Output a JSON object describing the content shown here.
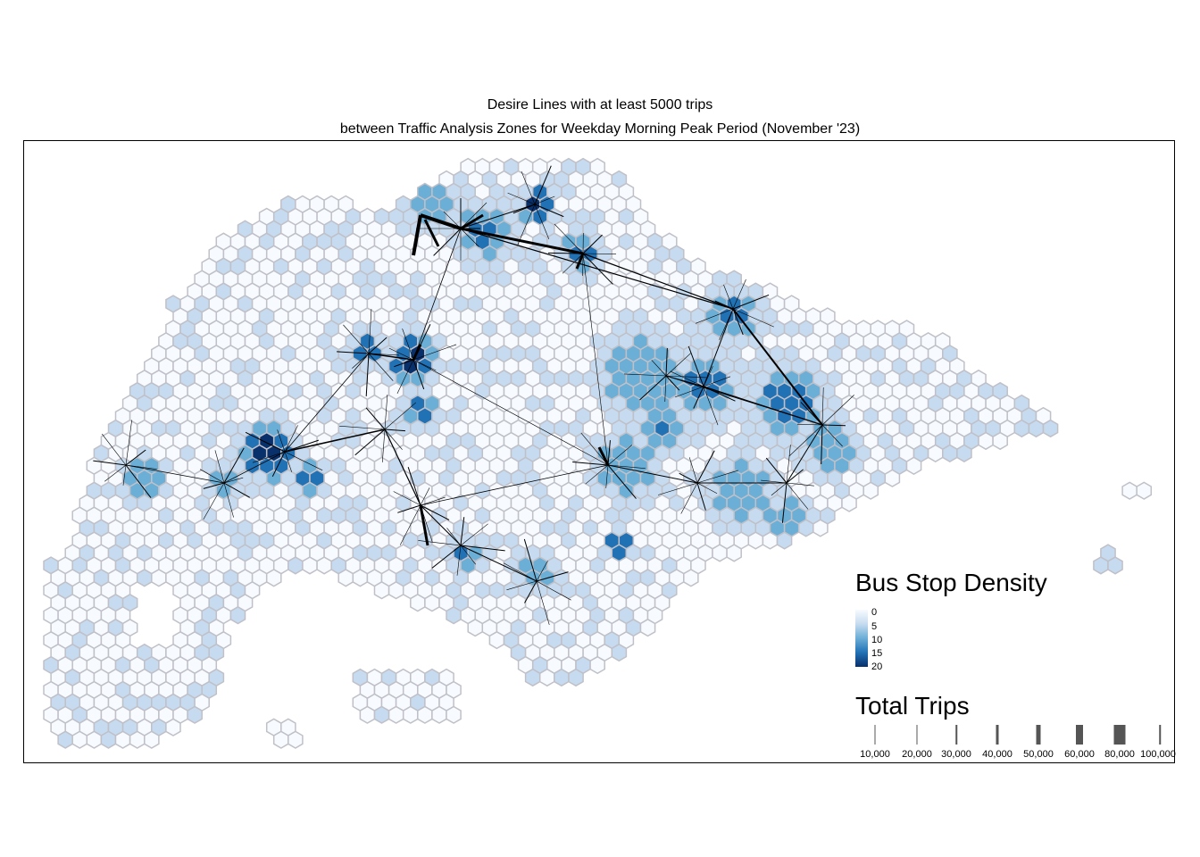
{
  "title": {
    "line1": "Desire Lines with at least 5000 trips",
    "line2": "between Traffic Analysis Zones for Weekday Morning Peak Period (November '23)"
  },
  "legend_density": {
    "title": "Bus Stop Density",
    "labels": [
      "0",
      "5",
      "10",
      "15",
      "20"
    ],
    "colors": [
      "#f7fbff",
      "#c6dbef",
      "#6baed6",
      "#2171b5",
      "#08306b"
    ]
  },
  "legend_trips": {
    "title": "Total Trips",
    "labels": [
      "10,000",
      "20,000",
      "30,000",
      "40,000",
      "50,000",
      "60,000",
      "80,000",
      "100,000"
    ],
    "values": [
      10000,
      20000,
      30000,
      40000,
      50000,
      60000,
      80000,
      100000
    ],
    "line_color": "#000000",
    "bar_color": "#555555"
  },
  "map": {
    "hex_border_color": "#c0c0c8",
    "background": "#ffffff"
  }
}
